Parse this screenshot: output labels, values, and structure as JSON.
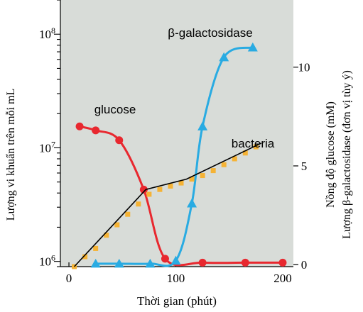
{
  "chart_data": {
    "type": "line",
    "xlabel": "Thời gian (phút)",
    "ylabel_left": "Lượng vi khuẩn trên mỗi mL",
    "ylabel_right_line1": "Nồng độ glucose (mM)",
    "ylabel_right_line2": "Lượng β-galactosidase (đơn vị tùy ý)",
    "x_ticks": [
      "0",
      "100",
      "200"
    ],
    "x_tick_values": [
      0,
      100,
      200
    ],
    "xlim": [
      -8,
      210
    ],
    "left_axis": {
      "scale": "log",
      "ylim": [
        900000,
        200000000
      ],
      "ticks": [
        {
          "base": "10",
          "exp": "6",
          "value": 1000000
        },
        {
          "base": "10",
          "exp": "7",
          "value": 10000000
        },
        {
          "base": "10",
          "exp": "8",
          "value": 100000000
        }
      ]
    },
    "right_axis": {
      "scale": "linear",
      "ylim": [
        -0.1,
        13.4
      ],
      "ticks": [
        "0",
        "5",
        "10"
      ],
      "tick_values": [
        0,
        5,
        10
      ]
    },
    "series": [
      {
        "name": "glucose",
        "axis": "right",
        "color": "#e8282f",
        "marker": "circle",
        "x": [
          10,
          25,
          47,
          70,
          90,
          125,
          165,
          200
        ],
        "y": [
          7.0,
          6.8,
          6.3,
          3.8,
          0.3,
          0.1,
          0.1,
          0.1
        ]
      },
      {
        "name": "β-galactosidase",
        "axis": "right",
        "color": "#29abe2",
        "marker": "triangle",
        "x": [
          25,
          47,
          76,
          100,
          115,
          125,
          145,
          172
        ],
        "y": [
          0.05,
          0.05,
          0.05,
          0.2,
          3.1,
          7.0,
          10.5,
          11.0
        ]
      },
      {
        "name": "bacteria",
        "axis": "left",
        "color": "#000000",
        "marker_color": "#f5b335",
        "marker": "square",
        "x": [
          5,
          15,
          25,
          35,
          45,
          55,
          65,
          75,
          85,
          95,
          105,
          115,
          125,
          135,
          145,
          155,
          165,
          175
        ],
        "y": [
          900000,
          1100000,
          1300000,
          1700000,
          2100000,
          2600000,
          3200000,
          3900000,
          4300000,
          4600000,
          4900000,
          5300000,
          5700000,
          6300000,
          7100000,
          8000000,
          9000000,
          10200000
        ]
      }
    ],
    "bacteria_fit_line": {
      "x": [
        5,
        72,
        110,
        180
      ],
      "y": [
        900000,
        4300000,
        5300000,
        11000000
      ]
    }
  }
}
